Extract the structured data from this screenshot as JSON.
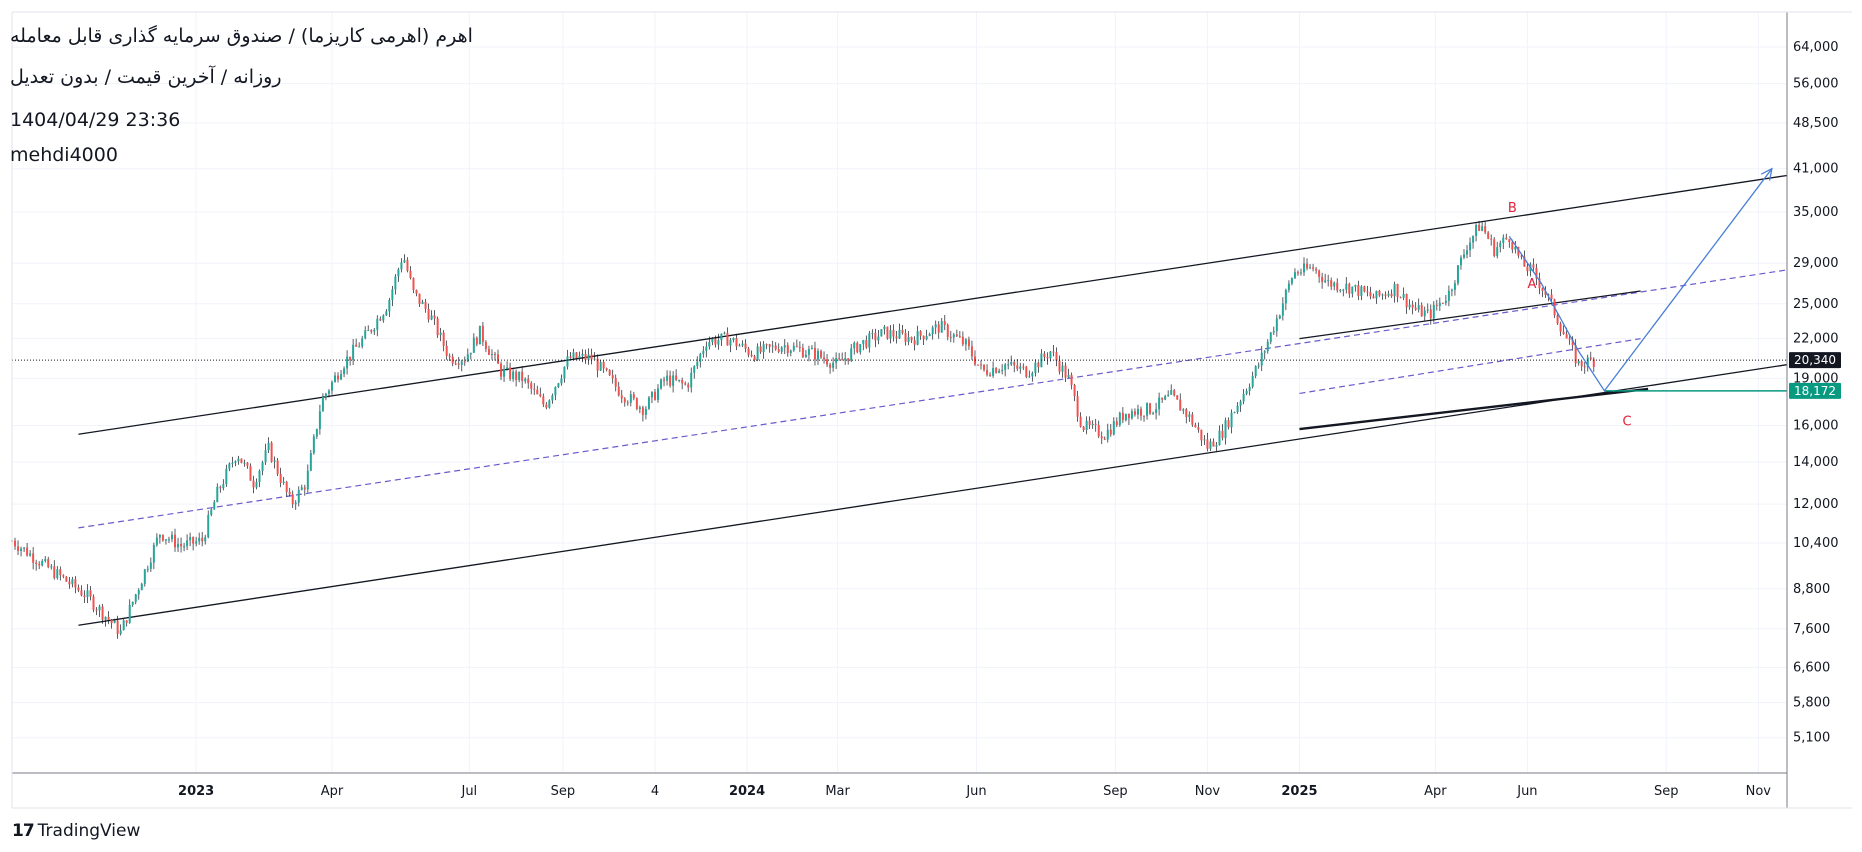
{
  "header": {
    "title": "اهرم (اهرمی کاریزما) / صندوق سرمایه گذاری قابل معامله",
    "subtitle": "روزانه / آخرین قیمت / بدون تعدیل",
    "datetime": "1404/04/29 23:36",
    "author": "mehdi4000"
  },
  "brand": {
    "name": "TradingView"
  },
  "colors": {
    "up": "#26a69a",
    "down": "#ef5350",
    "projection": "#4a7fd6",
    "midline": "#6a5acd",
    "target": "#089981",
    "wave_label": "#e0213a"
  },
  "chart_data": {
    "type": "candlestick",
    "title": "",
    "xlabel": "",
    "ylabel": "",
    "y_scale": "log",
    "ylim": [
      4700,
      72000
    ],
    "x_range": [
      "2022-09-01",
      "2025-11-20"
    ],
    "grid": true,
    "y_ticks": [
      "64,000",
      "56,000",
      "48,500",
      "41,000",
      "35,000",
      "29,000",
      "25,000",
      "22,000",
      "19,000",
      "16,000",
      "14,000",
      "12,000",
      "10,400",
      "8,800",
      "7,600",
      "6,600",
      "5,800",
      "5,100"
    ],
    "x_ticks": [
      {
        "label": "2023",
        "date": "2023-01-01",
        "bold": true
      },
      {
        "label": "Apr",
        "date": "2023-04-01",
        "bold": false
      },
      {
        "label": "Jul",
        "date": "2023-07-01",
        "bold": false
      },
      {
        "label": "Sep",
        "date": "2023-09-01",
        "bold": false
      },
      {
        "label": "4",
        "date": "2023-11-01",
        "bold": false
      },
      {
        "label": "2024",
        "date": "2024-01-01",
        "bold": true
      },
      {
        "label": "Mar",
        "date": "2024-03-01",
        "bold": false
      },
      {
        "label": "Jun",
        "date": "2024-06-01",
        "bold": false
      },
      {
        "label": "Sep",
        "date": "2024-09-01",
        "bold": false
      },
      {
        "label": "Nov",
        "date": "2024-11-01",
        "bold": false
      },
      {
        "label": "2025",
        "date": "2025-01-01",
        "bold": true
      },
      {
        "label": "Apr",
        "date": "2025-04-01",
        "bold": false
      },
      {
        "label": "Jun",
        "date": "2025-06-01",
        "bold": false
      },
      {
        "label": "Sep",
        "date": "2025-09-01",
        "bold": false
      },
      {
        "label": "Nov",
        "date": "2025-11-01",
        "bold": false
      }
    ],
    "price_path": [
      [
        "2022-09-01",
        10500
      ],
      [
        "2022-09-25",
        9500
      ],
      [
        "2022-10-20",
        8600
      ],
      [
        "2022-11-12",
        7500
      ],
      [
        "2022-11-25",
        9000
      ],
      [
        "2022-12-08",
        10800
      ],
      [
        "2022-12-22",
        10300
      ],
      [
        "2023-01-05",
        10500
      ],
      [
        "2023-01-15",
        12500
      ],
      [
        "2023-01-28",
        14500
      ],
      [
        "2023-02-08",
        13000
      ],
      [
        "2023-02-18",
        14700
      ],
      [
        "2023-03-05",
        12000
      ],
      [
        "2023-03-15",
        13000
      ],
      [
        "2023-03-25",
        17500
      ],
      [
        "2023-04-08",
        20000
      ],
      [
        "2023-04-25",
        22500
      ],
      [
        "2023-05-08",
        25000
      ],
      [
        "2023-05-18",
        30000
      ],
      [
        "2023-05-25",
        26000
      ],
      [
        "2023-06-05",
        24000
      ],
      [
        "2023-06-18",
        20500
      ],
      [
        "2023-06-28",
        20500
      ],
      [
        "2023-07-08",
        22500
      ],
      [
        "2023-07-22",
        19500
      ],
      [
        "2023-08-05",
        19000
      ],
      [
        "2023-08-20",
        17200
      ],
      [
        "2023-09-05",
        20500
      ],
      [
        "2023-09-20",
        20500
      ],
      [
        "2023-10-10",
        18000
      ],
      [
        "2023-10-25",
        17000
      ],
      [
        "2023-11-08",
        19000
      ],
      [
        "2023-11-22",
        18500
      ],
      [
        "2023-12-05",
        21800
      ],
      [
        "2023-12-20",
        22000
      ],
      [
        "2024-01-05",
        20800
      ],
      [
        "2024-01-25",
        21500
      ],
      [
        "2024-02-15",
        20800
      ],
      [
        "2024-03-01",
        20000
      ],
      [
        "2024-03-15",
        21500
      ],
      [
        "2024-04-01",
        22500
      ],
      [
        "2024-04-20",
        22000
      ],
      [
        "2024-05-08",
        23000
      ],
      [
        "2024-05-25",
        21500
      ],
      [
        "2024-06-05",
        19500
      ],
      [
        "2024-06-20",
        20000
      ],
      [
        "2024-07-05",
        19500
      ],
      [
        "2024-07-20",
        21000
      ],
      [
        "2024-08-01",
        19000
      ],
      [
        "2024-08-10",
        16000
      ],
      [
        "2024-08-25",
        15500
      ],
      [
        "2024-09-08",
        16800
      ],
      [
        "2024-09-25",
        17000
      ],
      [
        "2024-10-08",
        17800
      ],
      [
        "2024-10-20",
        16500
      ],
      [
        "2024-11-01",
        14800
      ],
      [
        "2024-11-10",
        15500
      ],
      [
        "2024-11-22",
        17500
      ],
      [
        "2024-12-05",
        20000
      ],
      [
        "2024-12-18",
        24000
      ],
      [
        "2024-12-28",
        28000
      ],
      [
        "2025-01-10",
        28500
      ],
      [
        "2025-01-20",
        27000
      ],
      [
        "2025-02-05",
        26500
      ],
      [
        "2025-02-20",
        25500
      ],
      [
        "2025-03-05",
        26500
      ],
      [
        "2025-03-18",
        24500
      ],
      [
        "2025-03-28",
        24000
      ],
      [
        "2025-04-10",
        26000
      ],
      [
        "2025-04-22",
        31000
      ],
      [
        "2025-05-01",
        33500
      ],
      [
        "2025-05-10",
        30500
      ],
      [
        "2025-05-20",
        32000
      ],
      [
        "2025-05-28",
        29000
      ],
      [
        "2025-06-05",
        28000
      ],
      [
        "2025-06-15",
        25500
      ],
      [
        "2025-06-25",
        22500
      ],
      [
        "2025-07-05",
        20000
      ],
      [
        "2025-07-15",
        20340
      ]
    ],
    "last_price": "20,340",
    "target_price": "18,172",
    "channel_upper": [
      [
        "2022-10-15",
        15500
      ],
      [
        "2025-11-20",
        40000
      ]
    ],
    "channel_lower": [
      [
        "2022-10-15",
        7700
      ],
      [
        "2025-11-20",
        20000
      ]
    ],
    "channel_midline": [
      [
        "2022-10-15",
        11000
      ],
      [
        "2025-11-20",
        28300
      ]
    ],
    "inner_upper": [
      [
        "2025-01-01",
        22000
      ],
      [
        "2025-08-15",
        26200
      ]
    ],
    "inner_midline": [
      [
        "2025-01-01",
        18000
      ],
      [
        "2025-08-15",
        22000
      ]
    ],
    "projection_path": [
      [
        "2025-05-20",
        32000
      ],
      [
        "2025-06-10",
        27000
      ],
      [
        "2025-07-05",
        21000
      ],
      [
        "2025-07-22",
        18172
      ],
      [
        "2025-11-10",
        41000
      ]
    ],
    "wave_labels": [
      {
        "label": "A",
        "date": "2025-06-04",
        "price": 26500
      },
      {
        "label": "B",
        "date": "2025-05-22",
        "price": 35000
      },
      {
        "label": "C",
        "date": "2025-08-06",
        "price": 16000
      }
    ]
  }
}
